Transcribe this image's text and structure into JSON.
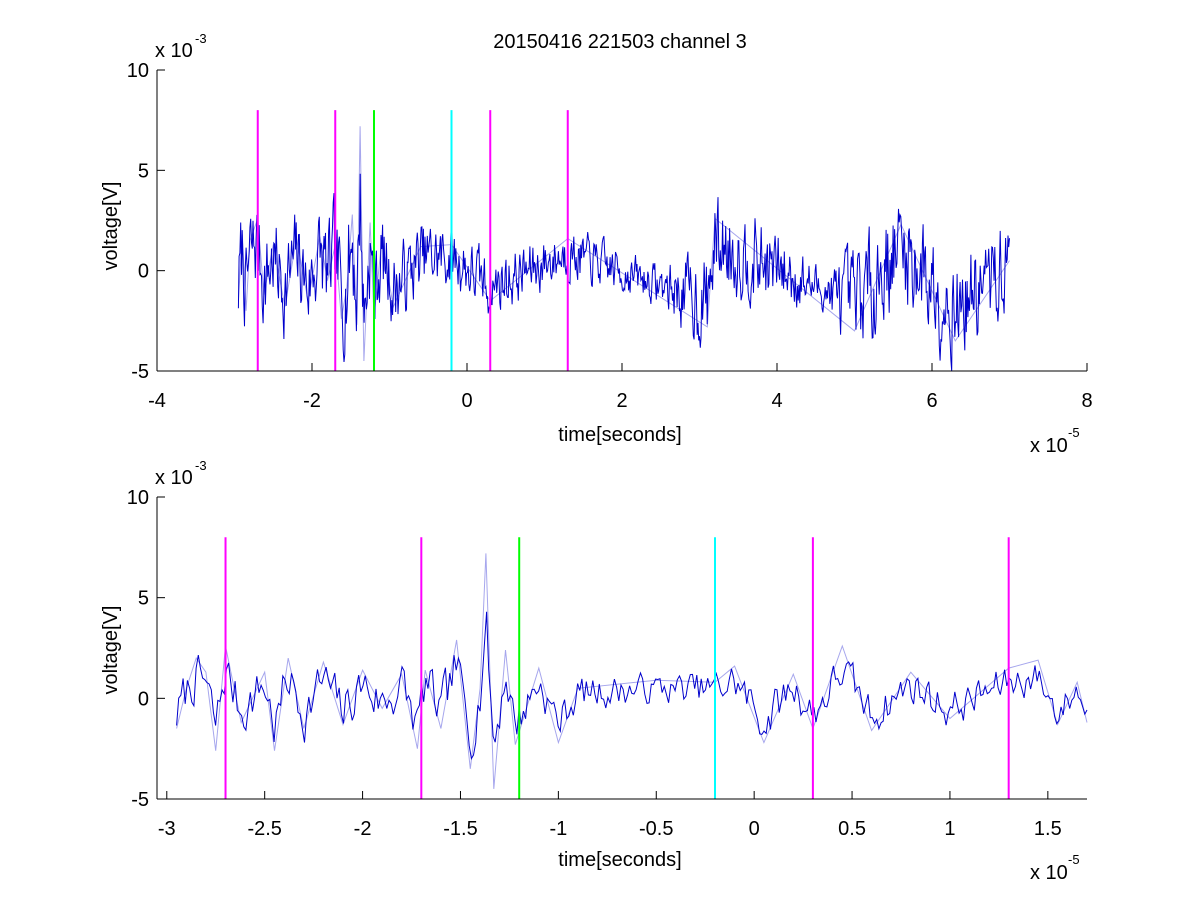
{
  "colors": {
    "signal": "#0000cc",
    "marker_magenta": "#ff00ff",
    "marker_green": "#00ff00",
    "marker_cyan": "#00ffff",
    "axis": "#000000",
    "background": "#ffffff"
  },
  "chart_data": [
    {
      "type": "line",
      "title": "20150416 221503 channel 3",
      "xlabel": "time[seconds]",
      "ylabel": "voltage[V]",
      "x_multiplier_label": "x 10",
      "x_multiplier_exp": "-5",
      "y_multiplier_label": "x 10",
      "y_multiplier_exp": "-3",
      "xlim": [
        -4,
        8
      ],
      "ylim": [
        -5,
        10
      ],
      "x_units_scale": "1e-5",
      "y_units_scale": "1e-3",
      "xticks": [
        -4,
        -2,
        0,
        2,
        4,
        6,
        8
      ],
      "xtick_labels": [
        "-4",
        "-2",
        "0",
        "2",
        "4",
        "6",
        "8"
      ],
      "yticks": [
        -5,
        0,
        5,
        10
      ],
      "ytick_labels": [
        "-5",
        "0",
        "5",
        "10"
      ],
      "grid": false,
      "series": [
        {
          "color": "#0000cc",
          "x_range": [
            -2.95,
            7.0
          ],
          "keypoints": [
            [
              -2.95,
              -1.5
            ],
            [
              -2.9,
              1.8
            ],
            [
              -2.85,
              -2.0
            ],
            [
              -2.8,
              1.5
            ],
            [
              -2.7,
              2.6
            ],
            [
              -2.62,
              -1.2
            ],
            [
              -2.5,
              1.3
            ],
            [
              -2.35,
              -1.8
            ],
            [
              -2.2,
              1.6
            ],
            [
              -2.05,
              -1.5
            ],
            [
              -1.9,
              1.7
            ],
            [
              -1.8,
              -0.5
            ],
            [
              -1.7,
              1.3
            ],
            [
              -1.62,
              -2.4
            ],
            [
              -1.55,
              -0.8
            ],
            [
              -1.48,
              2.8
            ],
            [
              -1.42,
              -2.7
            ],
            [
              -1.38,
              7.2
            ],
            [
              -1.33,
              -4.5
            ],
            [
              -1.25,
              2.4
            ],
            [
              -1.2,
              -2.3
            ],
            [
              -1.1,
              1.5
            ],
            [
              -0.95,
              -1.8
            ],
            [
              -0.6,
              1.2
            ],
            [
              -0.2,
              1.3
            ],
            [
              0.3,
              -1.5
            ],
            [
              1.3,
              1.6
            ],
            [
              3.1,
              -2.8
            ],
            [
              3.2,
              2.6
            ],
            [
              5.0,
              -3.0
            ],
            [
              5.6,
              2.3
            ],
            [
              6.3,
              -3.5
            ],
            [
              7.0,
              0.5
            ]
          ],
          "amplitude_envelope": [
            [
              -2.95,
              2.0
            ],
            [
              -2.0,
              1.8
            ],
            [
              -1.5,
              2.5
            ],
            [
              -1.0,
              1.6
            ],
            [
              0.0,
              1.3
            ],
            [
              1.5,
              1.0
            ],
            [
              2.5,
              0.8
            ],
            [
              3.0,
              2.0
            ],
            [
              4.0,
              1.6
            ],
            [
              4.6,
              0.8
            ],
            [
              5.0,
              2.2
            ],
            [
              6.0,
              2.3
            ],
            [
              7.0,
              1.8
            ]
          ]
        }
      ],
      "markers": [
        {
          "x": -2.7,
          "color": "#ff00ff",
          "y_top": 8
        },
        {
          "x": -1.7,
          "color": "#ff00ff",
          "y_top": 8
        },
        {
          "x": -1.2,
          "color": "#00ff00",
          "y_top": 8
        },
        {
          "x": -0.2,
          "color": "#00ffff",
          "y_top": 8
        },
        {
          "x": 0.3,
          "color": "#ff00ff",
          "y_top": 8
        },
        {
          "x": 1.3,
          "color": "#ff00ff",
          "y_top": 8
        }
      ]
    },
    {
      "type": "line",
      "title": "",
      "xlabel": "time[seconds]",
      "ylabel": "voltage[V]",
      "x_multiplier_label": "x 10",
      "x_multiplier_exp": "-5",
      "y_multiplier_label": "x 10",
      "y_multiplier_exp": "-3",
      "xlim": [
        -3.05,
        1.7
      ],
      "ylim": [
        -5,
        10
      ],
      "x_units_scale": "1e-5",
      "y_units_scale": "1e-3",
      "xticks": [
        -3,
        -2.5,
        -2,
        -1.5,
        -1,
        -0.5,
        0,
        0.5,
        1,
        1.5
      ],
      "xtick_labels": [
        "-3",
        "-2.5",
        "-2",
        "-1.5",
        "-1",
        "-0.5",
        "0",
        "0.5",
        "1",
        "1.5"
      ],
      "yticks": [
        -5,
        0,
        5,
        10
      ],
      "ytick_labels": [
        "-5",
        "0",
        "5",
        "10"
      ],
      "grid": false,
      "series": [
        {
          "color": "#0000cc",
          "x_range": [
            -2.95,
            1.7
          ],
          "keypoints": [
            [
              -2.95,
              -1.5
            ],
            [
              -2.9,
              0.5
            ],
            [
              -2.85,
              2.0
            ],
            [
              -2.8,
              1.3
            ],
            [
              -2.75,
              -2.6
            ],
            [
              -2.7,
              2.6
            ],
            [
              -2.62,
              -1.2
            ],
            [
              -2.5,
              1.3
            ],
            [
              -2.45,
              -2.6
            ],
            [
              -2.38,
              2.0
            ],
            [
              -2.3,
              -1.5
            ],
            [
              -2.2,
              1.8
            ],
            [
              -2.1,
              -1.3
            ],
            [
              -2.0,
              1.4
            ],
            [
              -1.9,
              -0.5
            ],
            [
              -1.8,
              1.2
            ],
            [
              -1.72,
              -2.5
            ],
            [
              -1.68,
              1.4
            ],
            [
              -1.6,
              -1.5
            ],
            [
              -1.52,
              2.9
            ],
            [
              -1.45,
              -3.5
            ],
            [
              -1.4,
              0.5
            ],
            [
              -1.37,
              7.2
            ],
            [
              -1.33,
              -4.5
            ],
            [
              -1.27,
              2.4
            ],
            [
              -1.22,
              -2.3
            ],
            [
              -1.1,
              1.5
            ],
            [
              -1.0,
              -2.2
            ],
            [
              -0.9,
              0.5
            ],
            [
              -0.5,
              0.9
            ],
            [
              -0.2,
              0.8
            ],
            [
              -0.1,
              1.6
            ],
            [
              0.05,
              -2.2
            ],
            [
              0.2,
              1.2
            ],
            [
              0.3,
              -1.5
            ],
            [
              0.45,
              2.6
            ],
            [
              0.6,
              -1.6
            ],
            [
              0.8,
              1.3
            ],
            [
              1.0,
              -1.0
            ],
            [
              1.3,
              1.5
            ],
            [
              1.45,
              1.9
            ],
            [
              1.55,
              -1.3
            ],
            [
              1.65,
              0.8
            ],
            [
              1.7,
              -1.2
            ]
          ],
          "amplitude_envelope": [
            [
              -2.95,
              1.0
            ],
            [
              -1.5,
              1.1
            ],
            [
              -1.0,
              0.8
            ],
            [
              -0.5,
              0.6
            ],
            [
              0.0,
              0.9
            ],
            [
              1.0,
              0.8
            ],
            [
              1.7,
              0.7
            ]
          ]
        }
      ],
      "markers": [
        {
          "x": -2.7,
          "color": "#ff00ff",
          "y_top": 8
        },
        {
          "x": -1.7,
          "color": "#ff00ff",
          "y_top": 8
        },
        {
          "x": -1.2,
          "color": "#00ff00",
          "y_top": 8
        },
        {
          "x": -0.2,
          "color": "#00ffff",
          "y_top": 8
        },
        {
          "x": 0.3,
          "color": "#ff00ff",
          "y_top": 8
        },
        {
          "x": 1.3,
          "color": "#ff00ff",
          "y_top": 8
        }
      ]
    }
  ]
}
